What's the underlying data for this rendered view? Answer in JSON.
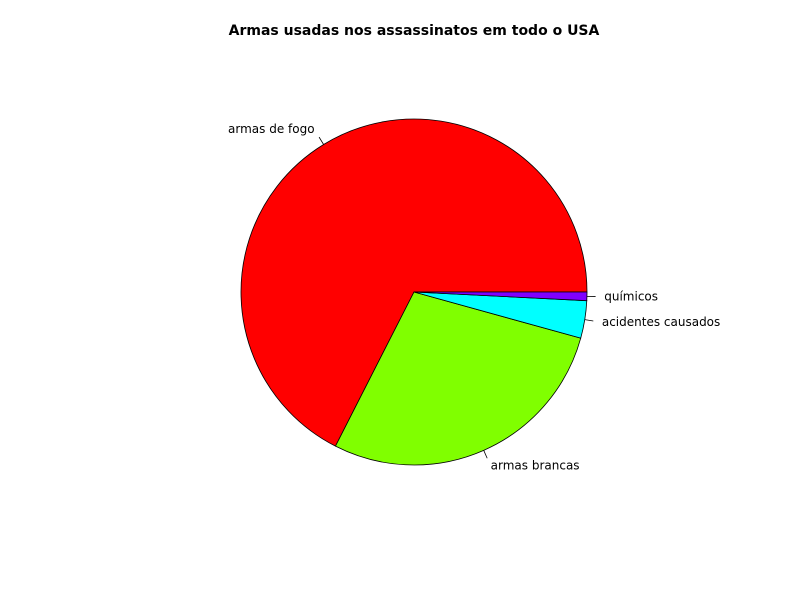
{
  "chart_data": {
    "type": "pie",
    "title": "Armas usadas nos assassinatos em todo o USA",
    "start": "counterclockwise from 3 o'clock",
    "slices": [
      {
        "label": "armas de fogo",
        "value": 67.5,
        "color": "#FF0000"
      },
      {
        "label": "armas brancas",
        "value": 28.2,
        "color": "#80FF00"
      },
      {
        "label": "acidentes causados",
        "value": 3.5,
        "color": "#00FFFF"
      },
      {
        "label": "químicos",
        "value": 0.8,
        "color": "#8000FF"
      }
    ]
  }
}
